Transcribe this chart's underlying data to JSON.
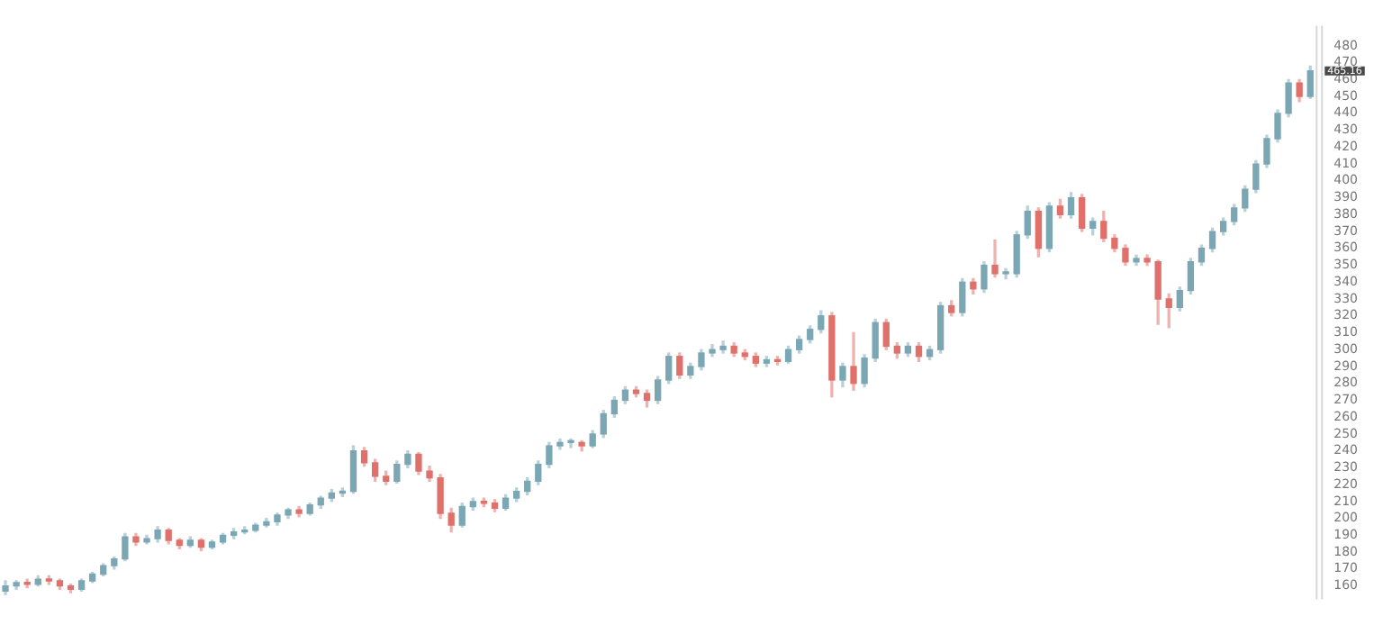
{
  "chart_data": {
    "type": "candlestick",
    "categories": [
      null,
      null,
      null,
      null,
      null,
      null,
      null,
      null,
      null,
      null,
      null,
      null,
      null,
      null,
      null,
      null,
      null,
      null,
      null,
      null,
      null,
      null,
      null,
      null,
      null,
      null,
      null,
      null,
      null,
      null,
      null,
      null,
      null,
      null,
      null,
      null,
      null,
      null,
      null,
      null,
      null,
      null,
      null,
      null,
      null,
      null,
      null,
      null,
      null,
      null,
      null,
      null,
      null,
      null,
      null,
      null,
      null,
      null,
      null,
      null,
      null,
      null,
      null,
      null,
      null,
      null,
      null,
      null,
      null,
      null,
      null,
      null,
      null,
      null,
      null,
      null,
      null,
      null,
      null,
      null,
      null,
      null,
      null,
      null,
      null,
      null,
      null,
      null,
      null,
      null,
      null,
      null,
      null,
      null,
      null,
      null,
      null,
      null,
      null,
      null,
      null,
      null,
      null,
      null,
      null,
      null,
      null,
      null,
      null,
      null,
      null,
      null,
      null,
      null,
      null,
      null,
      null,
      null,
      null,
      null,
      null
    ],
    "ohlc": [
      [
        157,
        163,
        155,
        160
      ],
      [
        160,
        163,
        158,
        162
      ],
      [
        162,
        164,
        159,
        161
      ],
      [
        161,
        166,
        160,
        164
      ],
      [
        164,
        166,
        161,
        163
      ],
      [
        163,
        164,
        158,
        160
      ],
      [
        160,
        161,
        156,
        158
      ],
      [
        158,
        164,
        157,
        163
      ],
      [
        163,
        168,
        162,
        167
      ],
      [
        167,
        173,
        166,
        172
      ],
      [
        172,
        177,
        170,
        176
      ],
      [
        176,
        191,
        175,
        189
      ],
      [
        189,
        191,
        184,
        186
      ],
      [
        186,
        190,
        185,
        188
      ],
      [
        188,
        195,
        186,
        193
      ],
      [
        193,
        194,
        185,
        187
      ],
      [
        187,
        188,
        182,
        184
      ],
      [
        184,
        189,
        183,
        187
      ],
      [
        187,
        188,
        181,
        183
      ],
      [
        183,
        187,
        182,
        186
      ],
      [
        186,
        191,
        185,
        190
      ],
      [
        190,
        194,
        188,
        192
      ],
      [
        192,
        195,
        191,
        193
      ],
      [
        193,
        197,
        192,
        196
      ],
      [
        196,
        200,
        195,
        198
      ],
      [
        198,
        203,
        196,
        202
      ],
      [
        202,
        206,
        200,
        205
      ],
      [
        205,
        207,
        201,
        203
      ],
      [
        203,
        209,
        202,
        208
      ],
      [
        208,
        213,
        206,
        212
      ],
      [
        212,
        217,
        210,
        215
      ],
      [
        215,
        218,
        213,
        216
      ],
      [
        216,
        243,
        215,
        240
      ],
      [
        240,
        242,
        231,
        233
      ],
      [
        233,
        235,
        222,
        225
      ],
      [
        225,
        228,
        220,
        222
      ],
      [
        222,
        234,
        221,
        232
      ],
      [
        232,
        240,
        230,
        238
      ],
      [
        238,
        239,
        226,
        228
      ],
      [
        228,
        231,
        222,
        224
      ],
      [
        224,
        226,
        200,
        203
      ],
      [
        203,
        206,
        192,
        196
      ],
      [
        196,
        209,
        195,
        207
      ],
      [
        207,
        212,
        205,
        210
      ],
      [
        210,
        212,
        207,
        209
      ],
      [
        209,
        211,
        204,
        206
      ],
      [
        206,
        214,
        205,
        212
      ],
      [
        212,
        218,
        210,
        216
      ],
      [
        216,
        224,
        214,
        222
      ],
      [
        222,
        234,
        220,
        232
      ],
      [
        232,
        245,
        230,
        243
      ],
      [
        243,
        247,
        241,
        245
      ],
      [
        245,
        247,
        242,
        245
      ],
      [
        245,
        246,
        240,
        243
      ],
      [
        243,
        252,
        242,
        250
      ],
      [
        250,
        264,
        248,
        262
      ],
      [
        262,
        272,
        260,
        270
      ],
      [
        270,
        278,
        268,
        276
      ],
      [
        276,
        278,
        272,
        274
      ],
      [
        274,
        276,
        266,
        270
      ],
      [
        270,
        284,
        268,
        282
      ],
      [
        282,
        298,
        280,
        296
      ],
      [
        296,
        298,
        283,
        285
      ],
      [
        285,
        292,
        283,
        290
      ],
      [
        290,
        300,
        288,
        298
      ],
      [
        298,
        303,
        296,
        300
      ],
      [
        300,
        305,
        298,
        302
      ],
      [
        302,
        304,
        296,
        298
      ],
      [
        298,
        300,
        294,
        296
      ],
      [
        296,
        298,
        290,
        292
      ],
      [
        292,
        296,
        290,
        294
      ],
      [
        294,
        296,
        291,
        293
      ],
      [
        293,
        302,
        292,
        300
      ],
      [
        300,
        308,
        298,
        306
      ],
      [
        306,
        314,
        304,
        312
      ],
      [
        312,
        323,
        310,
        320
      ],
      [
        320,
        322,
        272,
        282
      ],
      [
        282,
        292,
        278,
        290
      ],
      [
        290,
        310,
        276,
        280
      ],
      [
        280,
        297,
        278,
        295
      ],
      [
        295,
        318,
        293,
        316
      ],
      [
        316,
        318,
        300,
        302
      ],
      [
        302,
        304,
        295,
        298
      ],
      [
        298,
        304,
        296,
        302
      ],
      [
        302,
        304,
        293,
        296
      ],
      [
        296,
        302,
        294,
        300
      ],
      [
        300,
        328,
        298,
        326
      ],
      [
        326,
        329,
        320,
        322
      ],
      [
        322,
        342,
        320,
        340
      ],
      [
        340,
        342,
        333,
        336
      ],
      [
        336,
        352,
        334,
        350
      ],
      [
        350,
        365,
        343,
        345
      ],
      [
        345,
        348,
        342,
        345
      ],
      [
        345,
        370,
        343,
        368
      ],
      [
        368,
        385,
        366,
        382
      ],
      [
        382,
        384,
        355,
        360
      ],
      [
        360,
        387,
        358,
        385
      ],
      [
        385,
        389,
        378,
        380
      ],
      [
        380,
        393,
        378,
        390
      ],
      [
        390,
        392,
        370,
        372
      ],
      [
        372,
        378,
        368,
        376
      ],
      [
        376,
        382,
        364,
        366
      ],
      [
        366,
        368,
        358,
        360
      ],
      [
        360,
        362,
        350,
        352
      ],
      [
        352,
        356,
        350,
        354
      ],
      [
        354,
        356,
        350,
        352
      ],
      [
        352,
        353,
        315,
        330
      ],
      [
        330,
        333,
        313,
        325
      ],
      [
        325,
        337,
        323,
        335
      ],
      [
        335,
        354,
        333,
        352
      ],
      [
        352,
        362,
        350,
        360
      ],
      [
        360,
        372,
        358,
        370
      ],
      [
        370,
        378,
        368,
        376
      ],
      [
        376,
        386,
        374,
        384
      ],
      [
        384,
        397,
        382,
        395
      ],
      [
        395,
        412,
        393,
        410
      ],
      [
        410,
        427,
        408,
        425
      ],
      [
        425,
        442,
        423,
        440
      ],
      [
        440,
        460,
        438,
        458
      ],
      [
        458,
        460,
        447,
        450
      ],
      [
        450,
        468,
        449,
        465.16
      ]
    ],
    "colors": [
      "#7ba7b5",
      "#7ba7b5",
      "#e0706a",
      "#7ba7b5",
      "#e0706a",
      "#e0706a",
      "#e0706a",
      "#7ba7b5",
      "#7ba7b5",
      "#7ba7b5",
      "#7ba7b5",
      "#7ba7b5",
      "#e0706a",
      "#7ba7b5",
      "#7ba7b5",
      "#e0706a",
      "#e0706a",
      "#7ba7b5",
      "#e0706a",
      "#7ba7b5",
      "#7ba7b5",
      "#7ba7b5",
      "#7ba7b5",
      "#7ba7b5",
      "#7ba7b5",
      "#7ba7b5",
      "#7ba7b5",
      "#e0706a",
      "#7ba7b5",
      "#7ba7b5",
      "#7ba7b5",
      "#7ba7b5",
      "#7ba7b5",
      "#e0706a",
      "#e0706a",
      "#e0706a",
      "#7ba7b5",
      "#7ba7b5",
      "#e0706a",
      "#e0706a",
      "#e0706a",
      "#e0706a",
      "#7ba7b5",
      "#7ba7b5",
      "#e0706a",
      "#e0706a",
      "#7ba7b5",
      "#7ba7b5",
      "#7ba7b5",
      "#7ba7b5",
      "#7ba7b5",
      "#7ba7b5",
      "#7ba7b5",
      "#e0706a",
      "#7ba7b5",
      "#7ba7b5",
      "#7ba7b5",
      "#7ba7b5",
      "#e0706a",
      "#e0706a",
      "#7ba7b5",
      "#7ba7b5",
      "#e0706a",
      "#7ba7b5",
      "#7ba7b5",
      "#7ba7b5",
      "#7ba7b5",
      "#e0706a",
      "#e0706a",
      "#e0706a",
      "#7ba7b5",
      "#e0706a",
      "#7ba7b5",
      "#7ba7b5",
      "#7ba7b5",
      "#7ba7b5",
      "#e0706a",
      "#7ba7b5",
      "#e0706a",
      "#7ba7b5",
      "#7ba7b5",
      "#e0706a",
      "#e0706a",
      "#7ba7b5",
      "#e0706a",
      "#7ba7b5",
      "#7ba7b5",
      "#e0706a",
      "#7ba7b5",
      "#e0706a",
      "#7ba7b5",
      "#e0706a",
      "#7ba7b5",
      "#7ba7b5",
      "#7ba7b5",
      "#e0706a",
      "#7ba7b5",
      "#e0706a",
      "#7ba7b5",
      "#e0706a",
      "#7ba7b5",
      "#e0706a",
      "#e0706a",
      "#e0706a",
      "#7ba7b5",
      "#e0706a",
      "#e0706a",
      "#e0706a",
      "#7ba7b5",
      "#7ba7b5",
      "#7ba7b5",
      "#7ba7b5",
      "#7ba7b5",
      "#7ba7b5",
      "#7ba7b5",
      "#7ba7b5",
      "#7ba7b5",
      "#7ba7b5",
      "#7ba7b5",
      "#e0706a",
      "#7ba7b5"
    ],
    "ylim": [
      152,
      492
    ],
    "yticks": [
      160,
      170,
      180,
      190,
      200,
      210,
      220,
      230,
      240,
      250,
      260,
      270,
      280,
      290,
      300,
      310,
      320,
      330,
      340,
      350,
      360,
      370,
      380,
      390,
      400,
      410,
      420,
      430,
      440,
      450,
      460,
      470,
      480
    ],
    "annotations": [
      "465.16"
    ],
    "grid": false,
    "legend": false
  }
}
